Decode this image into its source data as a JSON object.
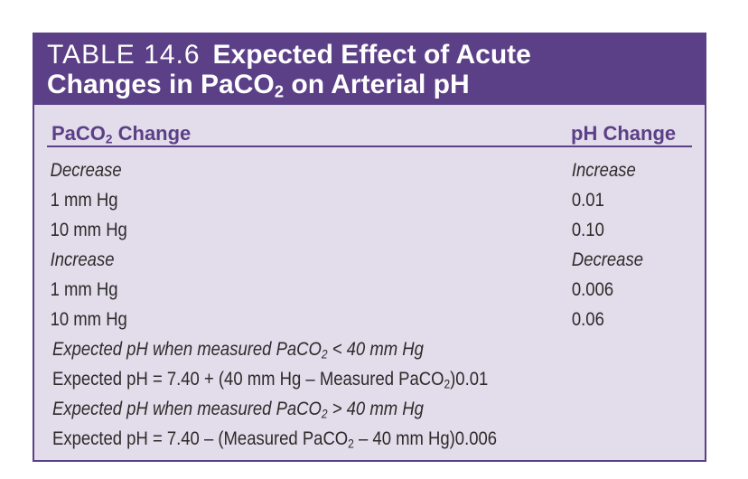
{
  "header": {
    "table_number": "TABLE 14.6",
    "title_line1": "Expected Effect of Acute",
    "title_line2_pre": "Changes in PaCO",
    "title_line2_sub": "2",
    "title_line2_post": " on Arterial pH"
  },
  "columns": {
    "left_pre": "PaCO",
    "left_sub": "2",
    "left_post": " Change",
    "right": "pH Change"
  },
  "rows": [
    {
      "c1": "Decrease",
      "c2": "Increase",
      "italic": true
    },
    {
      "c1": "1 mm Hg",
      "c2": "0.01",
      "italic": false
    },
    {
      "c1": "10 mm Hg",
      "c2": "0.10",
      "italic": false
    },
    {
      "c1": "Increase",
      "c2": "Decrease",
      "italic": true
    },
    {
      "c1": "1 mm Hg",
      "c2": "0.006",
      "italic": false
    },
    {
      "c1": "10 mm Hg",
      "c2": "0.06",
      "italic": false
    }
  ],
  "notes": {
    "n1_pre": "Expected pH when measured PaCO",
    "n1_sub": "2",
    "n1_post": " < 40 mm Hg",
    "n2_pre": "Expected pH = 7.40 + (40 mm Hg – Measured PaCO",
    "n2_sub": "2",
    "n2_post": ")0.01",
    "n3_pre": "Expected pH when measured PaCO",
    "n3_sub": "2",
    "n3_post": " > 40 mm Hg",
    "n4_pre": "Expected pH = 7.40 – (Measured PaCO",
    "n4_sub": "2",
    "n4_post": " – 40 mm Hg)0.006"
  },
  "colors": {
    "header_bg": "#5b3f87",
    "body_bg": "#e3dcea",
    "text": "#2b2b2b"
  }
}
